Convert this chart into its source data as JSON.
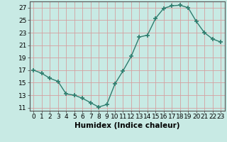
{
  "x": [
    0,
    1,
    2,
    3,
    4,
    5,
    6,
    7,
    8,
    9,
    10,
    11,
    12,
    13,
    14,
    15,
    16,
    17,
    18,
    19,
    20,
    21,
    22,
    23
  ],
  "y": [
    17.0,
    16.5,
    15.7,
    15.2,
    13.2,
    13.0,
    12.5,
    11.8,
    11.1,
    11.5,
    14.8,
    16.9,
    19.2,
    22.3,
    22.6,
    25.3,
    26.9,
    27.3,
    27.4,
    27.0,
    24.8,
    23.0,
    22.0,
    21.5
  ],
  "line_color": "#2e7d6e",
  "marker": "+",
  "marker_size": 4,
  "marker_lw": 1.2,
  "bg_color": "#c8eae4",
  "grid_color": "#d4a0a0",
  "xlabel": "Humidex (Indice chaleur)",
  "xlim": [
    -0.5,
    23.5
  ],
  "ylim": [
    10.5,
    28.0
  ],
  "xticks": [
    0,
    1,
    2,
    3,
    4,
    5,
    6,
    7,
    8,
    9,
    10,
    11,
    12,
    13,
    14,
    15,
    16,
    17,
    18,
    19,
    20,
    21,
    22,
    23
  ],
  "yticks": [
    11,
    13,
    15,
    17,
    19,
    21,
    23,
    25,
    27
  ],
  "tick_label_fontsize": 6.5,
  "xlabel_fontsize": 7.5,
  "linewidth": 1.0
}
